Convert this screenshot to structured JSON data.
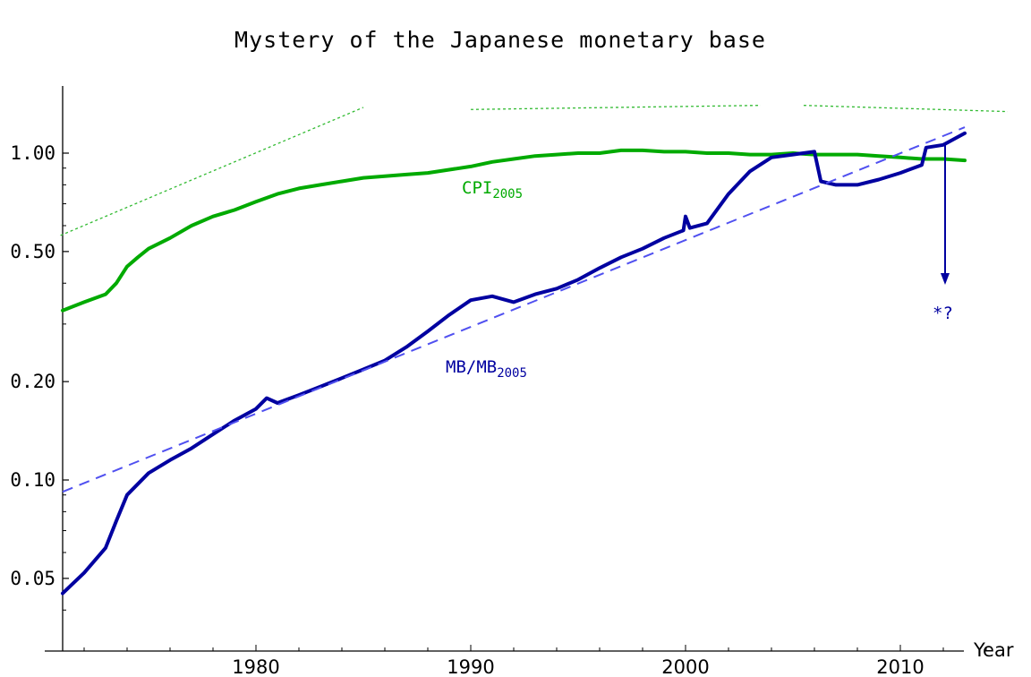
{
  "chart_data": {
    "type": "line",
    "title": "Mystery of the Japanese monetary base",
    "xlabel": "Year",
    "ylabel": "",
    "yscale": "log",
    "xlim": [
      1971,
      2015
    ],
    "ylim": [
      0.035,
      1.55
    ],
    "x_ticks": [
      1980,
      1990,
      2000,
      2010
    ],
    "x_tick_labels": [
      "1980",
      "1990",
      "2000",
      "2010"
    ],
    "y_ticks": [
      0.05,
      0.1,
      0.2,
      0.5,
      1.0
    ],
    "y_tick_labels": [
      "0.05",
      "0.10",
      "0.20",
      "0.50",
      "1.00"
    ],
    "grid": false,
    "legend": "inline labels",
    "series": [
      {
        "name": "CPI_2005",
        "label_main": "CPI",
        "label_sub": "2005",
        "color": "#00aa00",
        "style": "solid",
        "x": [
          1971,
          1972,
          1973,
          1973.5,
          1974,
          1974.5,
          1975,
          1976,
          1977,
          1978,
          1979,
          1980,
          1981,
          1982,
          1983,
          1984,
          1985,
          1986,
          1987,
          1988,
          1989,
          1990,
          1991,
          1992,
          1993,
          1994,
          1995,
          1996,
          1997,
          1998,
          1999,
          2000,
          2001,
          2002,
          2003,
          2004,
          2005,
          2006,
          2007,
          2008,
          2009,
          2010,
          2011,
          2012,
          2013
        ],
        "values": [
          0.33,
          0.35,
          0.37,
          0.4,
          0.45,
          0.48,
          0.51,
          0.55,
          0.6,
          0.64,
          0.67,
          0.71,
          0.75,
          0.78,
          0.8,
          0.82,
          0.84,
          0.85,
          0.86,
          0.87,
          0.89,
          0.91,
          0.94,
          0.96,
          0.98,
          0.99,
          1.0,
          1.0,
          1.02,
          1.02,
          1.01,
          1.01,
          1.0,
          1.0,
          0.99,
          0.99,
          1.0,
          0.99,
          0.99,
          0.99,
          0.98,
          0.97,
          0.96,
          0.96,
          0.95
        ]
      },
      {
        "name": "MB/MB_2005",
        "label_main": "MB/MB",
        "label_sub": "2005",
        "color": "#0000a0",
        "style": "solid",
        "x": [
          1971,
          1972,
          1973,
          1973.5,
          1974,
          1975,
          1976,
          1977,
          1978,
          1979,
          1980,
          1980.5,
          1981,
          1982,
          1983,
          1984,
          1985,
          1986,
          1987,
          1988,
          1989,
          1990,
          1991,
          1992,
          1993,
          1994,
          1995,
          1996,
          1997,
          1998,
          1999,
          1999.9,
          2000,
          2000.2,
          2001,
          2002,
          2003,
          2004,
          2005,
          2006,
          2006.3,
          2007,
          2008,
          2009,
          2010,
          2011,
          2011.2,
          2012,
          2013
        ],
        "values": [
          0.045,
          0.052,
          0.062,
          0.075,
          0.09,
          0.105,
          0.115,
          0.125,
          0.138,
          0.152,
          0.165,
          0.178,
          0.172,
          0.182,
          0.193,
          0.205,
          0.218,
          0.232,
          0.255,
          0.285,
          0.32,
          0.355,
          0.365,
          0.35,
          0.37,
          0.385,
          0.41,
          0.445,
          0.48,
          0.51,
          0.55,
          0.58,
          0.64,
          0.59,
          0.61,
          0.75,
          0.88,
          0.97,
          0.99,
          1.01,
          0.82,
          0.8,
          0.8,
          0.83,
          0.87,
          0.92,
          1.04,
          1.06,
          1.15
        ]
      },
      {
        "name": "MB trend (exponential fit)",
        "color": "#5050f0",
        "style": "dashed",
        "x": [
          1971,
          2013
        ],
        "values": [
          0.092,
          1.2
        ]
      },
      {
        "name": "CPI reference (dotted segments)",
        "color": "#33bb33",
        "style": "dotted",
        "segments": [
          {
            "x": [
              1970.9,
              1985
            ],
            "values": [
              0.56,
              1.38
            ]
          },
          {
            "x": [
              1990,
              2003.5
            ],
            "values": [
              1.36,
              1.4
            ]
          },
          {
            "x": [
              2005.5,
              2015
            ],
            "values": [
              1.4,
              1.34
            ]
          }
        ]
      }
    ],
    "annotations": [
      {
        "type": "arrow",
        "x": 2013.2,
        "from": 0.97,
        "to": 0.41,
        "color": "#0000a0"
      },
      {
        "type": "text",
        "text": "*?",
        "x": 2013.2,
        "y": 0.335,
        "color": "#0000a0"
      }
    ]
  },
  "axes": {
    "x_label": "Year",
    "x_tick_labels": [
      "1980",
      "1990",
      "2000",
      "2010"
    ],
    "y_tick_labels": [
      "0.05",
      "0.10",
      "0.20",
      "0.50",
      "1.00"
    ]
  },
  "labels": {
    "title": "Mystery of the Japanese monetary base",
    "cpi_main": "CPI",
    "cpi_sub": "2005",
    "mb_main": "MB/MB",
    "mb_sub": "2005",
    "annotation": "*?"
  },
  "colors": {
    "cpi": "#00aa00",
    "mb": "#0000a0",
    "trend": "#5050f0",
    "reference": "#33bb33",
    "axis": "#000000"
  }
}
